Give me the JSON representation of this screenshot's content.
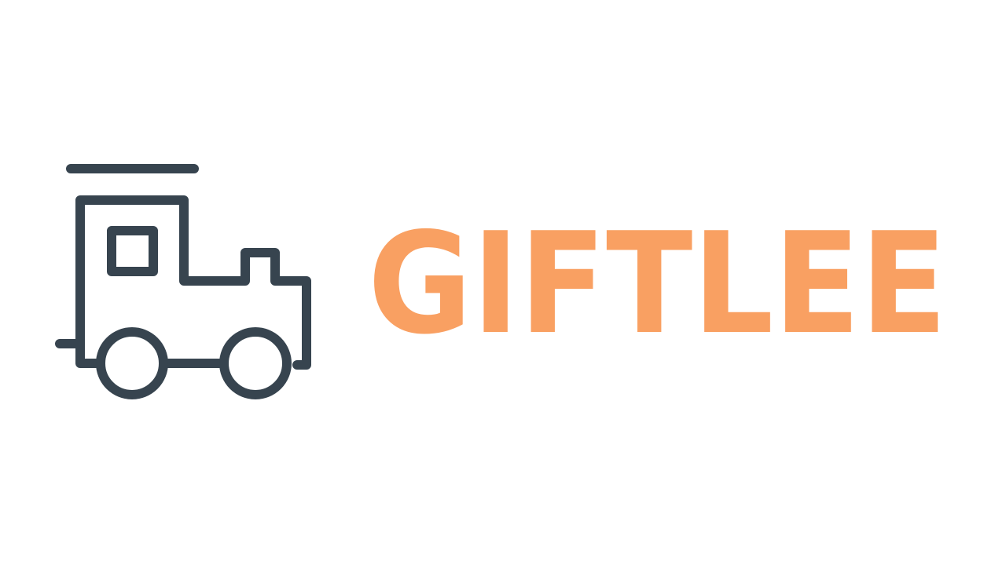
{
  "logo": {
    "text": "GIFTLEE"
  }
}
